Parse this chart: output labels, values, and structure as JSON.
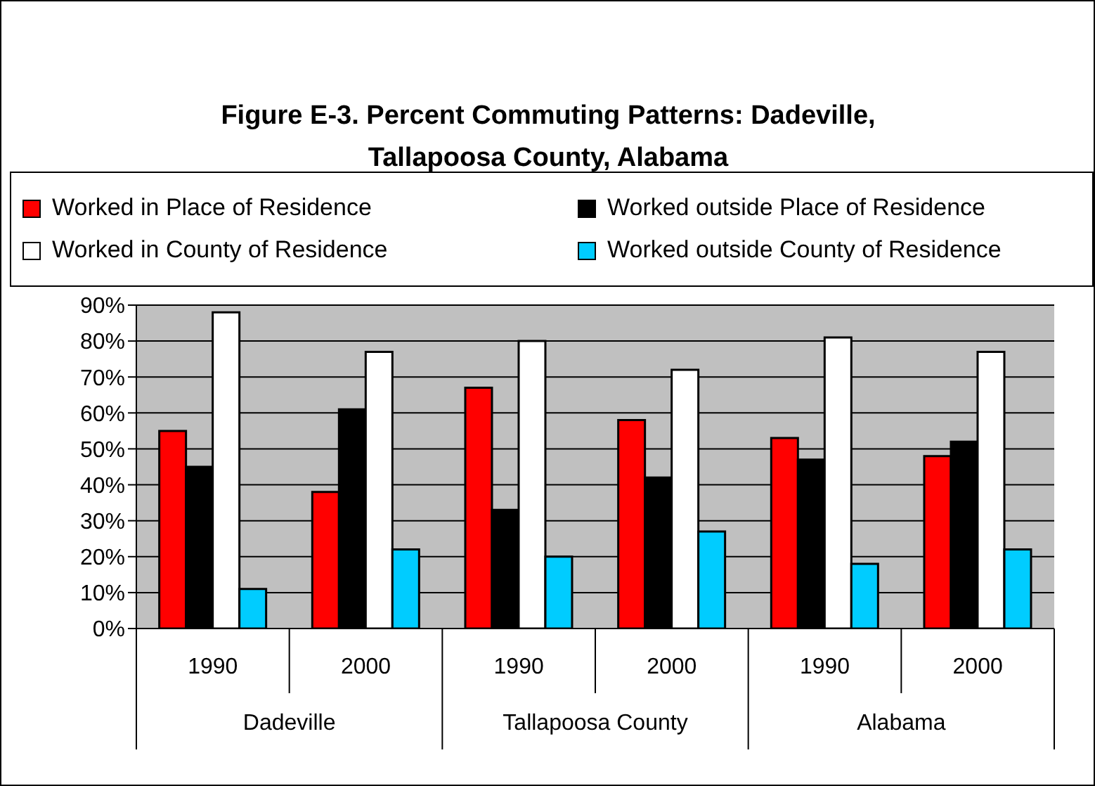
{
  "chart_data": {
    "type": "bar",
    "title": "Figure E-3. Percent Commuting Patterns: Dadeville, Tallapoosa County, Alabama",
    "categories": [
      "1990",
      "2000",
      "1990",
      "2000",
      "1990",
      "2000"
    ],
    "annotations": [
      "Dadeville",
      "Tallapoosa County",
      "Alabama"
    ],
    "series": [
      {
        "name": "Worked in Place of Residence",
        "color": "#ff0000",
        "values": [
          55,
          38,
          67,
          58,
          53,
          48
        ]
      },
      {
        "name": "Worked outside Place of Residence",
        "color": "#000000",
        "values": [
          45,
          61,
          33,
          42,
          47,
          52
        ]
      },
      {
        "name": "Worked in County of Residence",
        "color": "#ffffff",
        "values": [
          88,
          77,
          80,
          72,
          81,
          77
        ]
      },
      {
        "name": "Worked outside County of Residence",
        "color": "#00ccff",
        "values": [
          11,
          22,
          20,
          27,
          18,
          22
        ]
      }
    ],
    "ylim": [
      0,
      90
    ],
    "yticks": [
      {
        "value": 0,
        "label": "0%"
      },
      {
        "value": 10,
        "label": "10%"
      },
      {
        "value": 20,
        "label": "20%"
      },
      {
        "value": 30,
        "label": "30%"
      },
      {
        "value": 40,
        "label": "40%"
      },
      {
        "value": 50,
        "label": "50%"
      },
      {
        "value": 60,
        "label": "60%"
      },
      {
        "value": 70,
        "label": "70%"
      },
      {
        "value": 80,
        "label": "80%"
      },
      {
        "value": 90,
        "label": "90%"
      }
    ],
    "grid": "y",
    "legend": "top"
  }
}
